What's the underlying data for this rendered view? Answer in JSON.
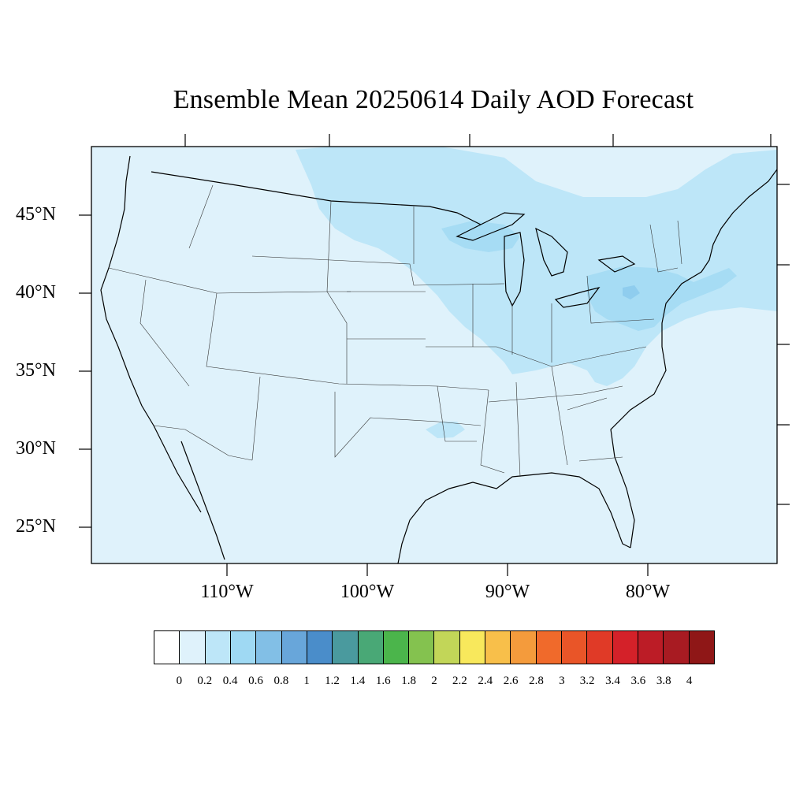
{
  "title": "Ensemble Mean 20250614 Daily AOD Forecast",
  "lat_labels": [
    "45°N",
    "40°N",
    "35°N",
    "30°N",
    "25°N"
  ],
  "lon_labels": [
    "110°W",
    "100°W",
    "90°W",
    "80°W"
  ],
  "colorbar": {
    "labels": [
      "0",
      "0.2",
      "0.4",
      "0.6",
      "0.8",
      "1",
      "1.2",
      "1.4",
      "1.6",
      "1.8",
      "2",
      "2.2",
      "2.4",
      "2.6",
      "2.8",
      "3",
      "3.2",
      "3.4",
      "3.6",
      "3.8",
      "4"
    ],
    "colors": [
      "#ffffff",
      "#dff2fb",
      "#bde6f8",
      "#9fd9f3",
      "#82bfe6",
      "#68a6da",
      "#4a8dca",
      "#4a9a9e",
      "#49a876",
      "#4bb54b",
      "#84c24f",
      "#c2d658",
      "#f8e85c",
      "#f8bf4a",
      "#f49b3c",
      "#f06a2b",
      "#e95528",
      "#e03a27",
      "#d42129",
      "#bc1c26",
      "#a81b22",
      "#8f1717"
    ]
  },
  "background_value_color": "#dff2fb",
  "plume_color": "#bde6f8",
  "core_color": "#9fd9f3"
}
